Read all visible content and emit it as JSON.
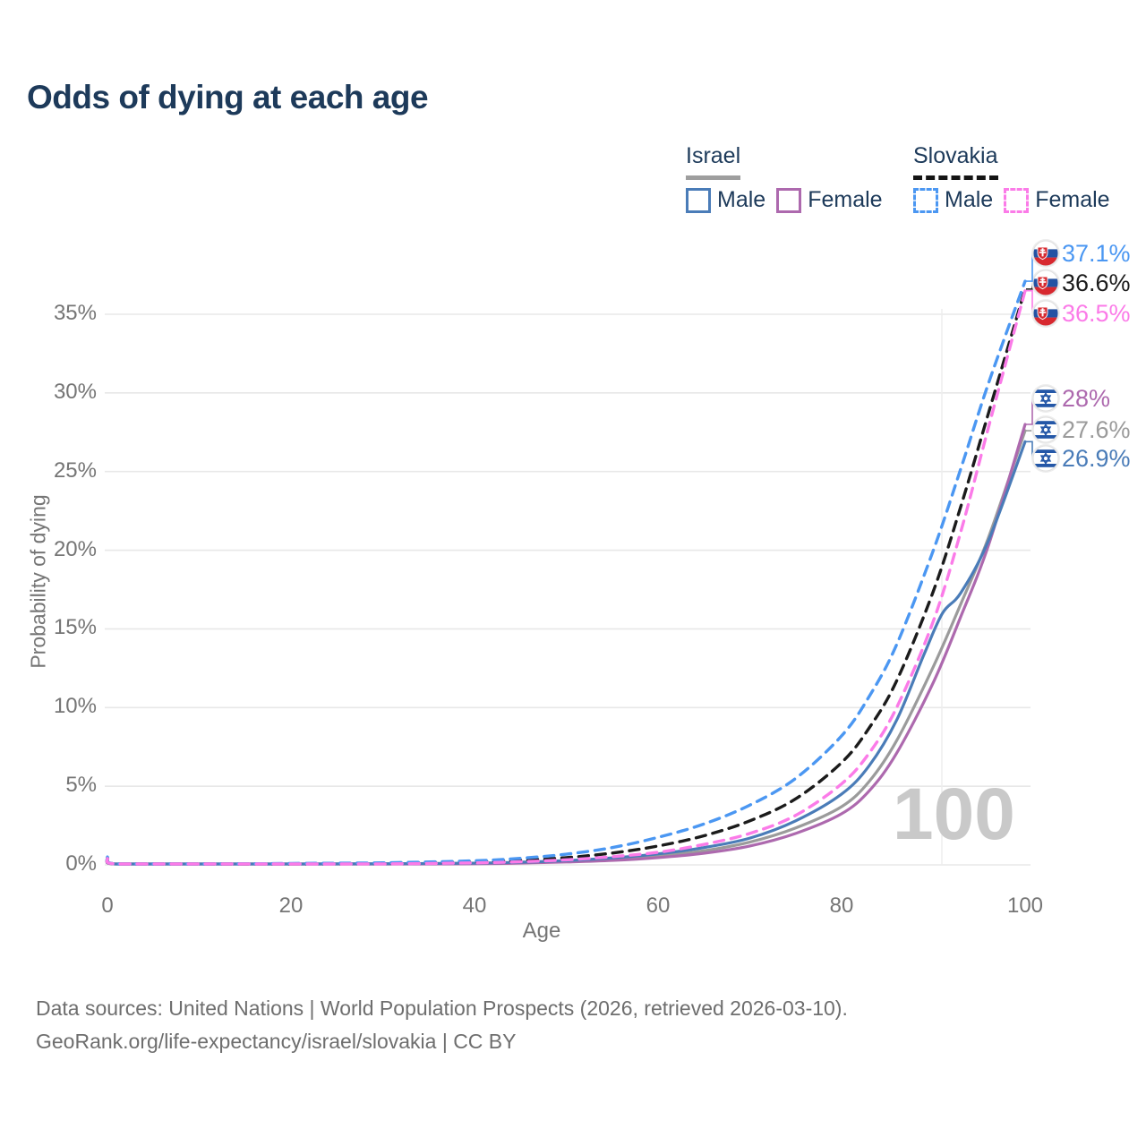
{
  "page": {
    "title": "Odds of dying at each age",
    "watermark": "100",
    "footer_line1": "Data sources: United Nations | World Population Prospects (2026, retrieved 2026-03-10).",
    "footer_line2": "GeoRank.org/life-expectancy/israel/slovakia | CC BY"
  },
  "legend": {
    "groups": [
      {
        "name": "Israel",
        "line_style": "solid",
        "underline_color": "#9e9e9e",
        "items": [
          {
            "label": "Male",
            "color": "#4a7cb8",
            "dashed": false
          },
          {
            "label": "Female",
            "color": "#ad69ae",
            "dashed": false
          }
        ]
      },
      {
        "name": "Slovakia",
        "line_style": "dashed",
        "underline_color": "#141414",
        "items": [
          {
            "label": "Male",
            "color": "#4b97f2",
            "dashed": true
          },
          {
            "label": "Female",
            "color": "#fb7be8",
            "dashed": true
          }
        ]
      }
    ]
  },
  "chart_data": {
    "type": "line",
    "title": "Odds of dying at each age",
    "xlabel": "Age",
    "ylabel": "Probability of dying",
    "xlim": [
      0,
      100
    ],
    "ylim_pct": [
      0,
      38
    ],
    "x_ticks": [
      0,
      20,
      40,
      60,
      80,
      100
    ],
    "y_tick_values": [
      0,
      5,
      10,
      15,
      20,
      25,
      30,
      35
    ],
    "y_tick_labels": [
      "0%",
      "5%",
      "10%",
      "15%",
      "20%",
      "25%",
      "30%",
      "35%"
    ],
    "grid": "horizontal",
    "legend_position": "top-right",
    "age_cursor": 100,
    "series": [
      {
        "name": "Israel — Total",
        "country": "Israel",
        "group": "total",
        "color": "#9b9b9b",
        "dashed": false,
        "flag": "israel",
        "end_label": "27.6%",
        "end_value_pct": 27.6,
        "label_slot": 1,
        "ages": [
          0,
          1,
          10,
          20,
          30,
          40,
          45,
          50,
          55,
          60,
          65,
          70,
          75,
          80,
          83,
          86,
          90,
          93,
          96,
          100
        ],
        "values_pct": [
          0.3,
          0.02,
          0.01,
          0.04,
          0.05,
          0.09,
          0.13,
          0.22,
          0.35,
          0.57,
          0.9,
          1.45,
          2.35,
          3.7,
          5.3,
          7.9,
          12.6,
          16.6,
          20.8,
          27.6
        ]
      },
      {
        "name": "Israel — Female",
        "country": "Israel",
        "group": "female",
        "color": "#ad69ae",
        "dashed": false,
        "flag": "israel",
        "end_label": "28%",
        "end_value_pct": 28.0,
        "label_slot": 0,
        "ages": [
          0,
          1,
          10,
          20,
          30,
          40,
          45,
          50,
          55,
          60,
          65,
          70,
          75,
          80,
          83,
          86,
          90,
          93,
          96,
          100
        ],
        "values_pct": [
          0.3,
          0.02,
          0.01,
          0.03,
          0.04,
          0.07,
          0.11,
          0.18,
          0.28,
          0.46,
          0.74,
          1.2,
          2.0,
          3.25,
          4.7,
          7.1,
          11.6,
          15.8,
          20.3,
          28.0
        ]
      },
      {
        "name": "Israel — Male",
        "country": "Israel",
        "group": "male",
        "color": "#4a7cb8",
        "dashed": false,
        "flag": "israel",
        "end_label": "26.9%",
        "end_value_pct": 26.9,
        "label_slot": 2,
        "ages": [
          0,
          1,
          10,
          20,
          30,
          40,
          45,
          50,
          55,
          60,
          65,
          70,
          75,
          80,
          83,
          86,
          89,
          91,
          93,
          96,
          100
        ],
        "values_pct": [
          0.35,
          0.03,
          0.01,
          0.05,
          0.07,
          0.11,
          0.17,
          0.27,
          0.44,
          0.7,
          1.1,
          1.7,
          2.8,
          4.5,
          6.3,
          9.2,
          13.4,
          16.0,
          17.3,
          20.6,
          26.9
        ]
      },
      {
        "name": "Slovakia — Total",
        "country": "Slovakia",
        "group": "total",
        "color": "#1b1b1b",
        "dashed": true,
        "flag": "slovakia",
        "end_label": "36.6%",
        "end_value_pct": 36.6,
        "label_slot": 1,
        "ages": [
          0,
          1,
          10,
          20,
          30,
          40,
          45,
          50,
          55,
          60,
          65,
          70,
          75,
          80,
          83,
          86,
          90,
          93,
          96,
          100
        ],
        "values_pct": [
          0.45,
          0.03,
          0.01,
          0.06,
          0.09,
          0.19,
          0.29,
          0.46,
          0.75,
          1.2,
          1.85,
          2.8,
          4.2,
          6.5,
          8.7,
          11.7,
          17.4,
          22.8,
          28.7,
          36.6
        ]
      },
      {
        "name": "Slovakia — Male",
        "country": "Slovakia",
        "group": "male",
        "color": "#4b97f2",
        "dashed": true,
        "flag": "slovakia",
        "end_label": "37.1%",
        "end_value_pct": 37.1,
        "label_slot": 0,
        "ages": [
          0,
          1,
          10,
          20,
          30,
          40,
          45,
          50,
          55,
          60,
          65,
          70,
          75,
          80,
          83,
          86,
          90,
          93,
          96,
          100
        ],
        "values_pct": [
          0.5,
          0.04,
          0.02,
          0.09,
          0.13,
          0.26,
          0.42,
          0.68,
          1.1,
          1.75,
          2.6,
          3.8,
          5.5,
          8.2,
          10.7,
          14.0,
          20.0,
          25.2,
          30.6,
          37.1
        ]
      },
      {
        "name": "Slovakia — Female",
        "country": "Slovakia",
        "group": "female",
        "color": "#fb7be8",
        "dashed": true,
        "flag": "slovakia",
        "end_label": "36.5%",
        "end_value_pct": 36.5,
        "label_slot": 2,
        "ages": [
          0,
          1,
          10,
          20,
          30,
          40,
          45,
          50,
          55,
          60,
          65,
          70,
          75,
          80,
          83,
          86,
          90,
          93,
          96,
          100
        ],
        "values_pct": [
          0.4,
          0.03,
          0.01,
          0.04,
          0.06,
          0.13,
          0.2,
          0.32,
          0.52,
          0.8,
          1.3,
          2.0,
          3.15,
          5.15,
          7.1,
          10.0,
          15.5,
          21.2,
          27.8,
          36.5
        ]
      }
    ]
  }
}
